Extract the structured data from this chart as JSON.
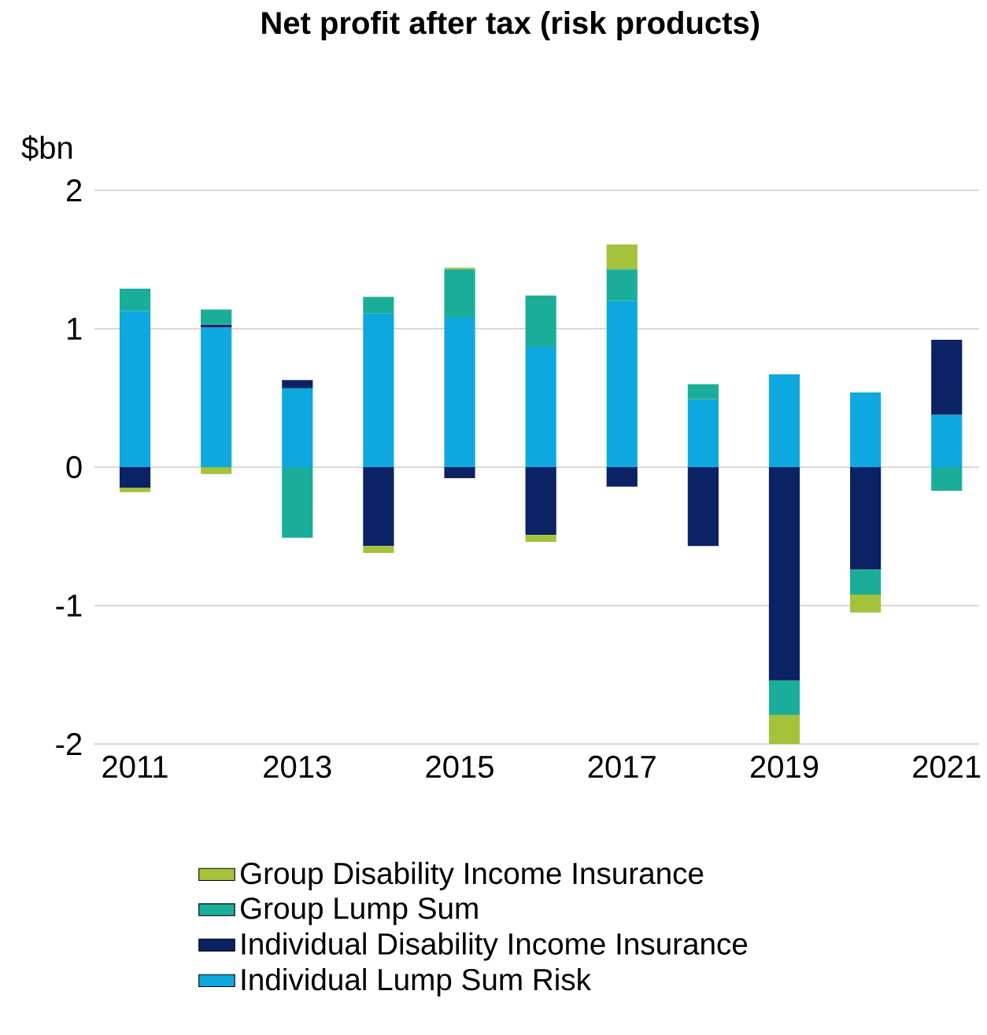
{
  "chart_data": {
    "type": "bar",
    "stacked": true,
    "title": "Net profit after tax (risk products)",
    "ylabel": "$bn",
    "categories": [
      "2011",
      null,
      "2013",
      null,
      "2015",
      null,
      "2017",
      null,
      "2019",
      null,
      "2021"
    ],
    "series": [
      {
        "name": "Individual Lump Sum Risk",
        "color": "#0ea8e0",
        "values": [
          1.13,
          1.01,
          0.57,
          1.11,
          1.08,
          0.87,
          1.2,
          0.49,
          0.67,
          0.54,
          0.38
        ]
      },
      {
        "name": "Individual Disability Income Insurance",
        "color": "#0b2265",
        "values": [
          -0.15,
          0.02,
          0.06,
          -0.57,
          -0.08,
          -0.49,
          -0.14,
          -0.57,
          -1.54,
          -0.74,
          0.54
        ]
      },
      {
        "name": "Group Lump Sum",
        "color": "#1aae9a",
        "values": [
          0.16,
          0.11,
          -0.51,
          0.12,
          0.35,
          0.37,
          0.23,
          0.11,
          -0.25,
          -0.18,
          -0.17
        ]
      },
      {
        "name": "Group Disability Income Insurance",
        "color": "#a4c23a",
        "values": [
          -0.03,
          -0.05,
          null,
          -0.05,
          0.01,
          -0.05,
          0.18,
          null,
          -0.23,
          -0.13,
          null
        ]
      }
    ],
    "ylim": [
      -2,
      2
    ],
    "yticks": [
      -2,
      -1,
      0,
      1,
      2
    ],
    "grid": "y",
    "legend": "bottom"
  }
}
